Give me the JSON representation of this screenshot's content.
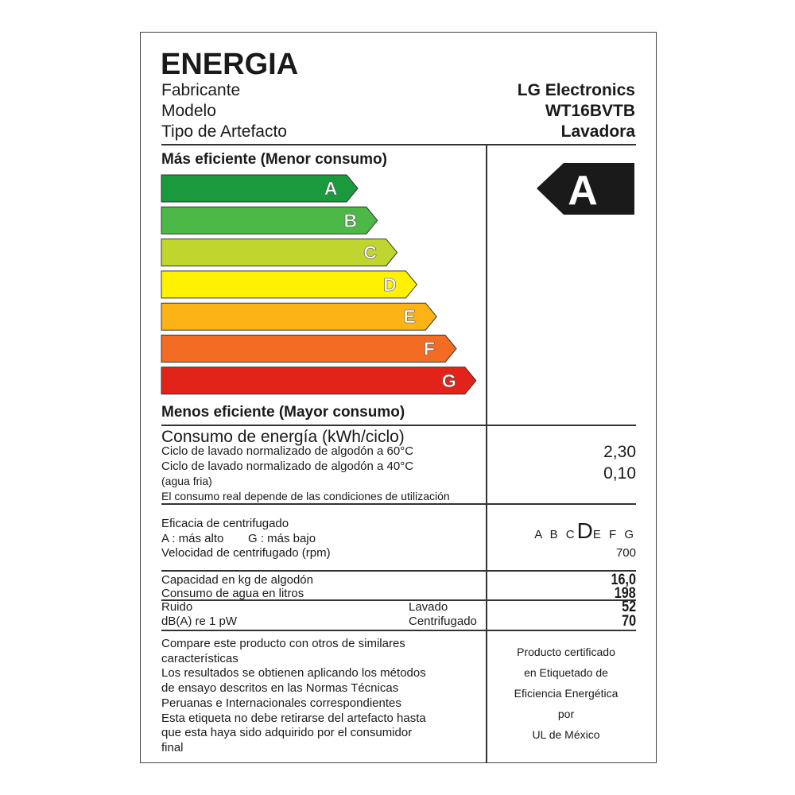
{
  "title": "ENERGIA",
  "info": [
    {
      "label": "Fabricante",
      "value": "LG Electronics"
    },
    {
      "label": "Modelo",
      "value": "WT16BVTB"
    },
    {
      "label": "Tipo de Artefacto",
      "value": "Lavadora"
    }
  ],
  "scale": {
    "top_label": "Más eficiente (Menor consumo)",
    "bottom_label": "Menos eficiente (Mayor consumo)",
    "classes": [
      {
        "letter": "A",
        "color": "#1a9a3c"
      },
      {
        "letter": "B",
        "color": "#4cb848"
      },
      {
        "letter": "C",
        "color": "#bfd62f"
      },
      {
        "letter": "D",
        "color": "#fff200"
      },
      {
        "letter": "E",
        "color": "#fbb316"
      },
      {
        "letter": "F",
        "color": "#f26c23"
      },
      {
        "letter": "G",
        "color": "#e2231a"
      }
    ],
    "rating": "A"
  },
  "energy": {
    "title": "Consumo de energía (kWh/ciclo)",
    "line1": "Ciclo de lavado normalizado de algodón a 60°C",
    "value1": "2,30",
    "line2": "Ciclo de lavado normalizado de algodón a 40°C",
    "line2b": "(agua fria)",
    "value2": "0,10",
    "note": "El consumo real depende de las condiciones de utilización"
  },
  "spin": {
    "title": "Eficacia de centrifugado",
    "legend_a": "A : más alto",
    "legend_g": "G : más bajo",
    "classes_before": "A B C",
    "class_selected": "D",
    "classes_after": "E F G",
    "speed_label": "Velocidad de centrifugado (rpm)",
    "speed": "700"
  },
  "specs": {
    "capacity_label": "Capacidad en kg de algodón",
    "capacity": "16,0",
    "water_label": "Consumo de agua en litros",
    "water": "198",
    "noise_label": "Ruido",
    "noise_unit": "dB(A) re 1 pW",
    "wash_label": "Lavado",
    "wash": "52",
    "spin_label": "Centrifugado",
    "spin": "70"
  },
  "notes": [
    "Compare este producto con otros de similares",
    "características",
    "Los resultados se obtienen aplicando los métodos",
    "de ensayo descritos en las Normas Técnicas",
    "Peruanas e Internacionales correspondientes",
    "Esta etiqueta no debe retirarse del artefacto hasta",
    "que esta haya sido adquirido por el consumidor",
    "final"
  ],
  "certification": [
    "Producto certificado",
    "en Etiquetado de",
    "Eficiencia Energética",
    "por",
    "UL de México"
  ]
}
